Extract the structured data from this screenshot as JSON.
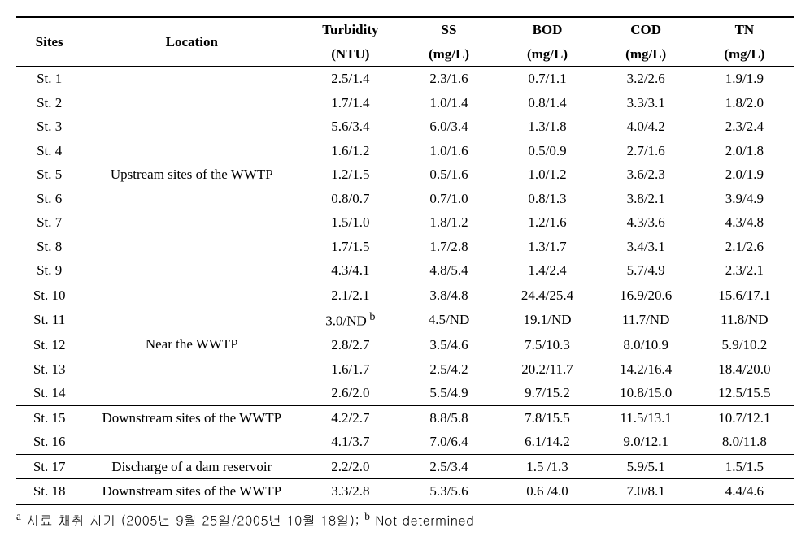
{
  "columns": [
    {
      "key": "sites",
      "label": "Sites",
      "sub": null
    },
    {
      "key": "location",
      "label": "Location",
      "sub": null
    },
    {
      "key": "turbidity",
      "label": "Turbidity",
      "sub": "(NTU)"
    },
    {
      "key": "ss",
      "label": "SS",
      "sub": "(mg/L)"
    },
    {
      "key": "bod",
      "label": "BOD",
      "sub": "(mg/L)"
    },
    {
      "key": "cod",
      "label": "COD",
      "sub": "(mg/L)"
    },
    {
      "key": "tn",
      "label": "TN",
      "sub": "(mg/L)"
    }
  ],
  "groups": [
    {
      "location": "Upstream sites of the WWTP",
      "rows": [
        {
          "site": "St. 1",
          "turbidity": "2.5/1.4",
          "ss": "2.3/1.6",
          "bod": "0.7/1.1",
          "cod": "3.2/2.6",
          "tn": "1.9/1.9"
        },
        {
          "site": "St. 2",
          "turbidity": "1.7/1.4",
          "ss": "1.0/1.4",
          "bod": "0.8/1.4",
          "cod": "3.3/3.1",
          "tn": "1.8/2.0"
        },
        {
          "site": "St. 3",
          "turbidity": "5.6/3.4",
          "ss": "6.0/3.4",
          "bod": "1.3/1.8",
          "cod": "4.0/4.2",
          "tn": "2.3/2.4"
        },
        {
          "site": "St. 4",
          "turbidity": "1.6/1.2",
          "ss": "1.0/1.6",
          "bod": "0.5/0.9",
          "cod": "2.7/1.6",
          "tn": "2.0/1.8"
        },
        {
          "site": "St. 5",
          "turbidity": "1.2/1.5",
          "ss": "0.5/1.6",
          "bod": "1.0/1.2",
          "cod": "3.6/2.3",
          "tn": "2.0/1.9"
        },
        {
          "site": "St. 6",
          "turbidity": "0.8/0.7",
          "ss": "0.7/1.0",
          "bod": "0.8/1.3",
          "cod": "3.8/2.1",
          "tn": "3.9/4.9"
        },
        {
          "site": "St. 7",
          "turbidity": "1.5/1.0",
          "ss": "1.8/1.2",
          "bod": "1.2/1.6",
          "cod": "4.3/3.6",
          "tn": "4.3/4.8"
        },
        {
          "site": "St. 8",
          "turbidity": "1.7/1.5",
          "ss": "1.7/2.8",
          "bod": "1.3/1.7",
          "cod": "3.4/3.1",
          "tn": "2.1/2.6"
        },
        {
          "site": "St. 9",
          "turbidity": "4.3/4.1",
          "ss": "4.8/5.4",
          "bod": "1.4/2.4",
          "cod": "5.7/4.9",
          "tn": "2.3/2.1"
        }
      ]
    },
    {
      "location": "Near the WWTP",
      "rows": [
        {
          "site": "St. 10",
          "turbidity": "2.1/2.1",
          "ss": "3.8/4.8",
          "bod": "24.4/25.4",
          "cod": "16.9/20.6",
          "tn": "15.6/17.1"
        },
        {
          "site": "St. 11",
          "turbidity": "3.0/ND",
          "turbidity_sup": "b",
          "ss": "4.5/ND",
          "bod": "19.1/ND",
          "cod": "11.7/ND",
          "tn": "11.8/ND"
        },
        {
          "site": "St. 12",
          "turbidity": "2.8/2.7",
          "ss": "3.5/4.6",
          "bod": "7.5/10.3",
          "cod": "8.0/10.9",
          "tn": "5.9/10.2"
        },
        {
          "site": "St. 13",
          "turbidity": "1.6/1.7",
          "ss": "2.5/4.2",
          "bod": "20.2/11.7",
          "cod": "14.2/16.4",
          "tn": "18.4/20.0"
        },
        {
          "site": "St. 14",
          "turbidity": "2.6/2.0",
          "ss": "5.5/4.9",
          "bod": "9.7/15.2",
          "cod": "10.8/15.0",
          "tn": "12.5/15.5"
        }
      ]
    },
    {
      "location": "Downstream sites of the WWTP",
      "rows": [
        {
          "site": "St. 15",
          "turbidity": "4.2/2.7",
          "ss": "8.8/5.8",
          "bod": "7.8/15.5",
          "cod": "11.5/13.1",
          "tn": "10.7/12.1"
        },
        {
          "site": "St. 16",
          "turbidity": "4.1/3.7",
          "ss": "7.0/6.4",
          "bod": "6.1/14.2",
          "cod": "9.0/12.1",
          "tn": "8.0/11.8"
        }
      ]
    },
    {
      "location": "Discharge of a dam reservoir",
      "rows": [
        {
          "site": "St. 17",
          "turbidity": "2.2/2.0",
          "ss": "2.5/3.4",
          "bod": "1.5 /1.3",
          "cod": "5.9/5.1",
          "tn": "1.5/1.5"
        }
      ]
    },
    {
      "location": "Downstream sites of the WWTP",
      "rows": [
        {
          "site": "St. 18",
          "turbidity": "3.3/2.8",
          "ss": "5.3/5.6",
          "bod": "0.6 /4.0",
          "cod": "7.0/8.1",
          "tn": "4.4/4.6"
        }
      ]
    }
  ],
  "footnote": {
    "a_sup": "a",
    "a_text": " 시료 채취 시기 (2005년 9월 25일/2005년 10월 18일); ",
    "b_sup": "b",
    "b_text": " Not determined"
  }
}
